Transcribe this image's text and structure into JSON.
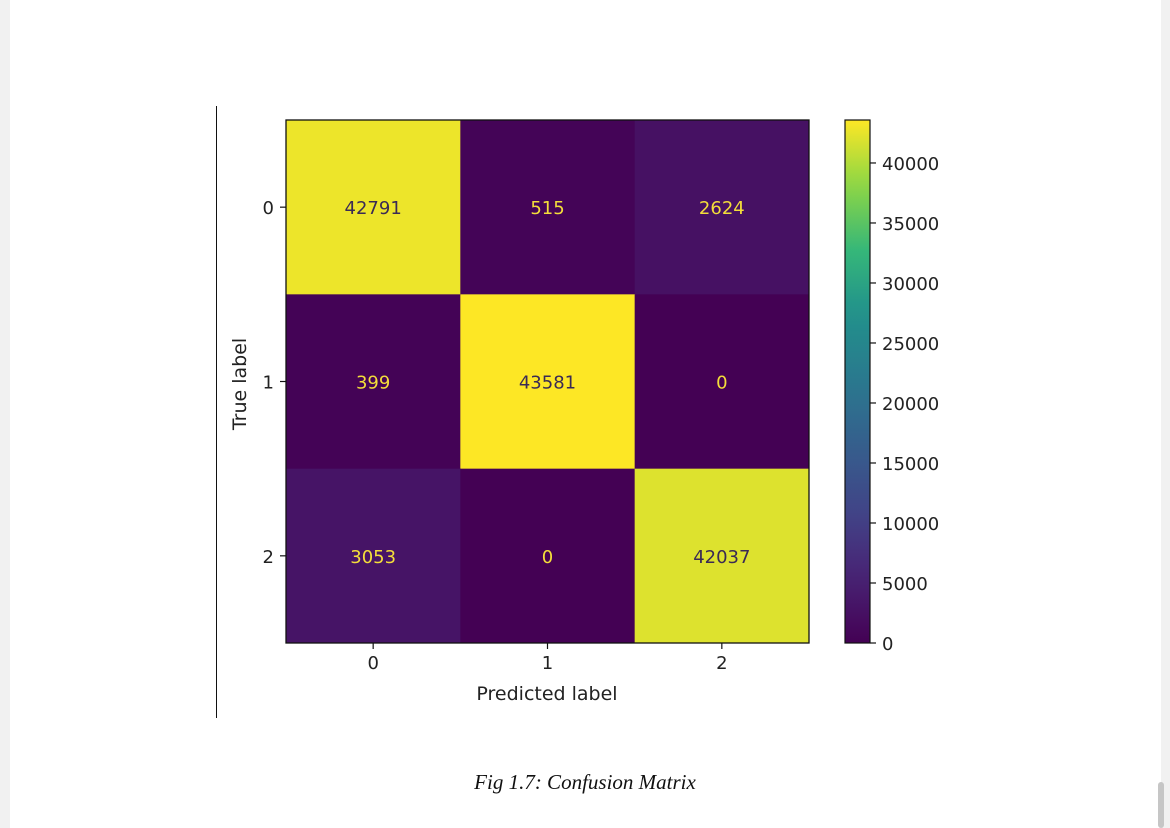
{
  "caption": "Fig 1.7: Confusion Matrix",
  "chart_data": {
    "type": "heatmap",
    "colormap": "viridis",
    "x_categories": [
      "0",
      "1",
      "2"
    ],
    "y_categories": [
      "0",
      "1",
      "2"
    ],
    "xlabel": "Predicted label",
    "ylabel": "True label",
    "matrix": [
      [
        42791,
        515,
        2624
      ],
      [
        399,
        43581,
        0
      ],
      [
        3053,
        0,
        42037
      ]
    ],
    "colorbar": {
      "range": [
        0,
        43581
      ],
      "ticks": [
        0,
        5000,
        10000,
        15000,
        20000,
        25000,
        30000,
        35000,
        40000
      ]
    },
    "grid": false
  }
}
